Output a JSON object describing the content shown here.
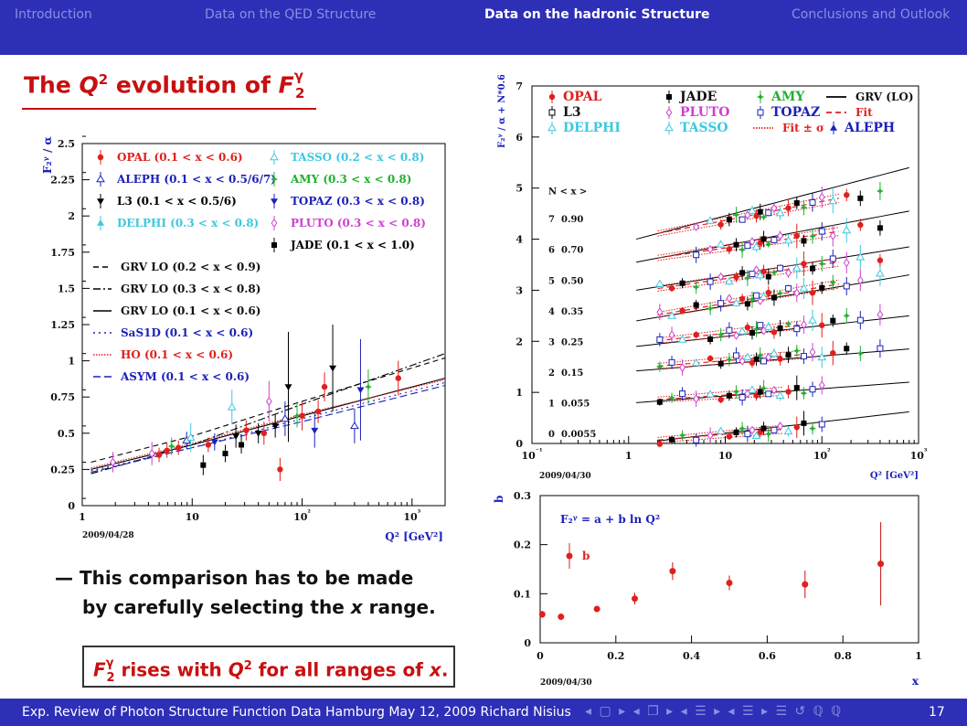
{
  "nav": {
    "items": [
      "Introduction",
      "Data on the QED Structure",
      "Data on the hadronic Structure",
      "Conclusions and Outlook"
    ],
    "active": "Data on the hadronic Structure"
  },
  "title": {
    "pre": "The ",
    "q": "Q",
    "sup": "2",
    "mid": " evolution of ",
    "f": "F",
    "fsub": "2",
    "fsup": "γ"
  },
  "bullet": {
    "line1": "— This comparison has to be made",
    "line2a": "by carefully selecting the ",
    "line2x": "x",
    "line2b": " range."
  },
  "box": {
    "f": "F",
    "fsub": "2",
    "fsup": "γ",
    "t1": " rises with ",
    "q": "Q",
    "qsup": "2",
    "t2": " for all ranges of ",
    "x": "x",
    "t3": "."
  },
  "footer": {
    "text": "Exp. Review of Photon Structure Function Data  Hamburg  May 12, 2009  Richard Nisius",
    "nav_glyphs": "◂ ▢ ▸ ◂ ❐ ▸ ◂ ☰ ▸ ◂ ☰ ▸   ☰   ↺ ℚ ℚ",
    "page": "17"
  },
  "colors": {
    "bar": "#2d2fb6",
    "accent": "#c81010",
    "opal": "#e0201e",
    "aleph": "#1c22b8",
    "l3": "#000000",
    "delphi": "#3ec8e0",
    "tasso": "#3ec8e0",
    "amy": "#22b030",
    "topaz": "#1c22b8",
    "pluto": "#d040d0",
    "jade": "#000000"
  },
  "chart_data": [
    {
      "type": "scatter",
      "id": "left",
      "ylabel": "F₂ᵞ / α",
      "xlabel": "Q² [GeV²]",
      "date": "2009/04/28",
      "xscale": "log",
      "xlim": [
        1,
        2000
      ],
      "ylim": [
        0,
        2.5
      ],
      "yticks": [
        "0",
        "0.25",
        "0.5",
        "0.75",
        "1",
        "1.25",
        "1.5",
        "1.75",
        "2",
        "2.25",
        "2.5"
      ],
      "xticks": [
        "1",
        "10",
        "10²",
        "10³"
      ],
      "legend_markers": [
        {
          "label": "OPAL (0.1 < x < 0.6)",
          "color": "#e0201e",
          "marker": "circle"
        },
        {
          "label": "TASSO (0.2 < x < 0.8)",
          "color": "#3ec8e0",
          "marker": "open-tri"
        },
        {
          "label": "ALEPH (0.1 < x < 0.5/6/7)",
          "color": "#1c22b8",
          "marker": "open-tri"
        },
        {
          "label": "AMY (0.3 < x < 0.8)",
          "color": "#22b030",
          "marker": "star"
        },
        {
          "label": "L3 (0.1 < x < 0.5/6)",
          "color": "#000000",
          "marker": "tri-down"
        },
        {
          "label": "TOPAZ (0.3 < x < 0.8)",
          "color": "#1c22b8",
          "marker": "tri-down"
        },
        {
          "label": "DELPHI (0.3 < x < 0.8)",
          "color": "#3ec8e0",
          "marker": "tri-up"
        },
        {
          "label": "PLUTO (0.3 < x < 0.8)",
          "color": "#d040d0",
          "marker": "open-diamond"
        },
        {
          "label": "JADE (0.1 < x < 1.0)",
          "color": "#000000",
          "marker": "square"
        }
      ],
      "legend_lines": [
        {
          "label": "GRV LO (0.2 < x < 0.9)",
          "color": "#000000",
          "dash": "6,4"
        },
        {
          "label": "GRV LO (0.3 < x < 0.8)",
          "color": "#000000",
          "dash": "8,3,2,3"
        },
        {
          "label": "GRV LO (0.1 < x < 0.6)",
          "color": "#000000",
          "dash": ""
        },
        {
          "label": "SaS1D (0.1 < x < 0.6)",
          "color": "#1c22b8",
          "dash": "2,4"
        },
        {
          "label": "HO (0.1 < x < 0.6)",
          "color": "#e0201e",
          "dash": "1.5,1.5"
        },
        {
          "label": "ASYM (0.1 < x < 0.6)",
          "color": "#1c22b8",
          "dash": "8,4"
        }
      ],
      "curves": [
        {
          "color": "#000000",
          "dash": "6,4",
          "points": [
            [
              1.2,
              0.3
            ],
            [
              10,
              0.48
            ],
            [
              100,
              0.72
            ],
            [
              2000,
              1.02
            ]
          ]
        },
        {
          "color": "#000000",
          "dash": "8,3,2,3",
          "points": [
            [
              1.2,
              0.22
            ],
            [
              10,
              0.42
            ],
            [
              100,
              0.7
            ],
            [
              2000,
              1.05
            ]
          ]
        },
        {
          "color": "#000000",
          "dash": "",
          "points": [
            [
              1.2,
              0.25
            ],
            [
              10,
              0.42
            ],
            [
              100,
              0.62
            ],
            [
              2000,
              0.88
            ]
          ]
        },
        {
          "color": "#1c22b8",
          "dash": "2,4",
          "points": [
            [
              1.2,
              0.24
            ],
            [
              10,
              0.4
            ],
            [
              100,
              0.6
            ],
            [
              2000,
              0.85
            ]
          ]
        },
        {
          "color": "#e0201e",
          "dash": "1.5,1.5",
          "points": [
            [
              1.2,
              0.26
            ],
            [
              10,
              0.43
            ],
            [
              100,
              0.63
            ],
            [
              2000,
              0.87
            ]
          ]
        },
        {
          "color": "#1c22b8",
          "dash": "8,4",
          "points": [
            [
              1.2,
              0.23
            ],
            [
              10,
              0.4
            ],
            [
              100,
              0.58
            ],
            [
              2000,
              0.83
            ]
          ]
        }
      ],
      "points": [
        {
          "x": 1.9,
          "y": 0.3,
          "e": 0.07,
          "color": "#d040d0",
          "m": "open-diamond"
        },
        {
          "x": 4.3,
          "y": 0.36,
          "e": 0.08,
          "color": "#d040d0",
          "m": "open-diamond"
        },
        {
          "x": 5,
          "y": 0.35,
          "e": 0.05,
          "color": "#e0201e",
          "m": "circle"
        },
        {
          "x": 5.9,
          "y": 0.38,
          "e": 0.05,
          "color": "#e0201e",
          "m": "circle"
        },
        {
          "x": 6.5,
          "y": 0.41,
          "e": 0.06,
          "color": "#22b030",
          "m": "star"
        },
        {
          "x": 7.5,
          "y": 0.4,
          "e": 0.05,
          "color": "#e0201e",
          "m": "circle"
        },
        {
          "x": 8.9,
          "y": 0.45,
          "e": 0.06,
          "color": "#1c22b8",
          "m": "open-tri"
        },
        {
          "x": 9.7,
          "y": 0.47,
          "e": 0.1,
          "color": "#3ec8e0",
          "m": "open-tri"
        },
        {
          "x": 12.6,
          "y": 0.28,
          "e": 0.07,
          "color": "#000000",
          "m": "square"
        },
        {
          "x": 14,
          "y": 0.42,
          "e": 0.05,
          "color": "#e0201e",
          "m": "circle"
        },
        {
          "x": 16,
          "y": 0.44,
          "e": 0.06,
          "color": "#1c22b8",
          "m": "tri-down"
        },
        {
          "x": 20,
          "y": 0.36,
          "e": 0.06,
          "color": "#000000",
          "m": "square"
        },
        {
          "x": 23,
          "y": 0.68,
          "e": 0.12,
          "color": "#3ec8e0",
          "m": "open-tri"
        },
        {
          "x": 25,
          "y": 0.48,
          "e": 0.08,
          "color": "#000000",
          "m": "tri-down"
        },
        {
          "x": 28,
          "y": 0.42,
          "e": 0.06,
          "color": "#000000",
          "m": "square"
        },
        {
          "x": 31,
          "y": 0.52,
          "e": 0.07,
          "color": "#e0201e",
          "m": "circle"
        },
        {
          "x": 40,
          "y": 0.5,
          "e": 0.07,
          "color": "#000000",
          "m": "tri-down"
        },
        {
          "x": 45,
          "y": 0.5,
          "e": 0.08,
          "color": "#e0201e",
          "m": "circle"
        },
        {
          "x": 50,
          "y": 0.72,
          "e": 0.14,
          "color": "#d040d0",
          "m": "open-diamond"
        },
        {
          "x": 57,
          "y": 0.55,
          "e": 0.08,
          "color": "#000000",
          "m": "tri-down"
        },
        {
          "x": 63,
          "y": 0.25,
          "e": 0.08,
          "color": "#e0201e",
          "m": "circle"
        },
        {
          "x": 70,
          "y": 0.6,
          "e": 0.12,
          "color": "#1c22b8",
          "m": "open-tri"
        },
        {
          "x": 75,
          "y": 0.82,
          "e": 0.38,
          "color": "#000000",
          "m": "tri-down"
        },
        {
          "x": 90,
          "y": 0.62,
          "e": 0.08,
          "color": "#22b030",
          "m": "star"
        },
        {
          "x": 100,
          "y": 0.62,
          "e": 0.1,
          "color": "#e0201e",
          "m": "circle"
        },
        {
          "x": 130,
          "y": 0.52,
          "e": 0.12,
          "color": "#1c22b8",
          "m": "tri-down"
        },
        {
          "x": 140,
          "y": 0.65,
          "e": 0.08,
          "color": "#e0201e",
          "m": "circle"
        },
        {
          "x": 160,
          "y": 0.82,
          "e": 0.1,
          "color": "#e0201e",
          "m": "circle"
        },
        {
          "x": 190,
          "y": 0.95,
          "e": 0.3,
          "color": "#000000",
          "m": "tri-down"
        },
        {
          "x": 300,
          "y": 0.55,
          "e": 0.12,
          "color": "#1c22b8",
          "m": "open-tri"
        },
        {
          "x": 340,
          "y": 0.8,
          "e": 0.35,
          "color": "#1c22b8",
          "m": "tri-down"
        },
        {
          "x": 400,
          "y": 0.82,
          "e": 0.12,
          "color": "#22b030",
          "m": "star"
        },
        {
          "x": 750,
          "y": 0.88,
          "e": 0.12,
          "color": "#e0201e",
          "m": "circle"
        }
      ]
    },
    {
      "type": "line",
      "id": "right-top",
      "ylabel": "F₂ᵞ / α + N*0.6",
      "xlabel": "Q² [GeV²]",
      "date": "2009/04/30",
      "xscale": "log",
      "xlim": [
        0.1,
        1000
      ],
      "ylim": [
        0,
        7
      ],
      "yticks": [
        "0",
        "1",
        "2",
        "3",
        "4",
        "5",
        "6",
        "7"
      ],
      "xticks": [
        "10⁻¹",
        "1",
        "10",
        "10²",
        "10³"
      ],
      "legend": [
        {
          "label": "OPAL",
          "color": "#e0201e",
          "marker": "circle"
        },
        {
          "label": "JADE",
          "color": "#000000",
          "marker": "square"
        },
        {
          "label": "AMY",
          "color": "#22b030",
          "marker": "star"
        },
        {
          "label": "GRV (LO)",
          "color": "#000000",
          "line": ""
        },
        {
          "label": "L3",
          "color": "#000000",
          "marker": "open-square"
        },
        {
          "label": "PLUTO",
          "color": "#d040d0",
          "marker": "open-diamond"
        },
        {
          "label": "TOPAZ",
          "color": "#1c22b8",
          "marker": "open-square"
        },
        {
          "label": "Fit",
          "color": "#e0201e",
          "line": "6,4"
        },
        {
          "label": "DELPHI",
          "color": "#3ec8e0",
          "marker": "open-tri"
        },
        {
          "label": "TASSO",
          "color": "#3ec8e0",
          "marker": "open-tri"
        },
        {
          "label": "Fit ± σ",
          "color": "#e0201e",
          "line": "1.5,1.5"
        },
        {
          "label": "ALEPH",
          "color": "#1c22b8",
          "marker": "tri-up"
        }
      ],
      "nx_header": "N  < x >",
      "nx_rows": [
        {
          "n": "7",
          "x": "0.90"
        },
        {
          "n": "6",
          "x": "0.70"
        },
        {
          "n": "5",
          "x": "0.50"
        },
        {
          "n": "4",
          "x": "0.35"
        },
        {
          "n": "3",
          "x": "0.25"
        },
        {
          "n": "2",
          "x": "0.15"
        },
        {
          "n": "1",
          "x": "0.055"
        },
        {
          "n": "0",
          "x": "0.0055"
        }
      ],
      "offset_step": 0.6,
      "bins": [
        {
          "n": 0,
          "a": 0.02,
          "b": 0.07,
          "grv": [
            [
              2,
              0.05
            ],
            [
              800,
              0.62
            ]
          ]
        },
        {
          "n": 1,
          "a": 0.82,
          "b": 0.055,
          "grv": [
            [
              1.2,
              0.8
            ],
            [
              800,
              1.2
            ]
          ]
        },
        {
          "n": 2,
          "a": 1.47,
          "b": 0.065,
          "grv": [
            [
              1.2,
              1.42
            ],
            [
              800,
              1.85
            ]
          ]
        },
        {
          "n": 3,
          "a": 1.95,
          "b": 0.09,
          "grv": [
            [
              1.2,
              1.9
            ],
            [
              800,
              2.5
            ]
          ]
        },
        {
          "n": 4,
          "a": 2.42,
          "b": 0.14,
          "grv": [
            [
              1.2,
              2.4
            ],
            [
              800,
              3.3
            ]
          ]
        },
        {
          "n": 5,
          "a": 2.95,
          "b": 0.12,
          "grv": [
            [
              1.2,
              3.0
            ],
            [
              800,
              3.85
            ]
          ]
        },
        {
          "n": 6,
          "a": 3.55,
          "b": 0.12,
          "grv": [
            [
              1.2,
              3.55
            ],
            [
              800,
              4.55
            ]
          ]
        },
        {
          "n": 7,
          "a": 4.0,
          "b": 0.16,
          "grv": [
            [
              1.2,
              4.0
            ],
            [
              800,
              5.4
            ]
          ]
        }
      ]
    },
    {
      "type": "scatter",
      "id": "right-bottom",
      "ylabel": "b",
      "xlabel": "x",
      "date": "2009/04/30",
      "formula": "F₂ᵞ = a + b ln Q²",
      "legend_label": "b",
      "xlim": [
        0,
        1
      ],
      "ylim": [
        0,
        0.3
      ],
      "xticks": [
        "0",
        "0.2",
        "0.4",
        "0.6",
        "0.8",
        "1"
      ],
      "yticks": [
        "0",
        "0.1",
        "0.2",
        "0.3"
      ],
      "x": [
        0.0055,
        0.055,
        0.15,
        0.25,
        0.35,
        0.5,
        0.7,
        0.9
      ],
      "y": [
        0.058,
        0.053,
        0.069,
        0.09,
        0.146,
        0.122,
        0.119,
        0.161
      ],
      "err": [
        0.007,
        0.004,
        0.006,
        0.012,
        0.018,
        0.015,
        0.028,
        0.085
      ]
    }
  ]
}
